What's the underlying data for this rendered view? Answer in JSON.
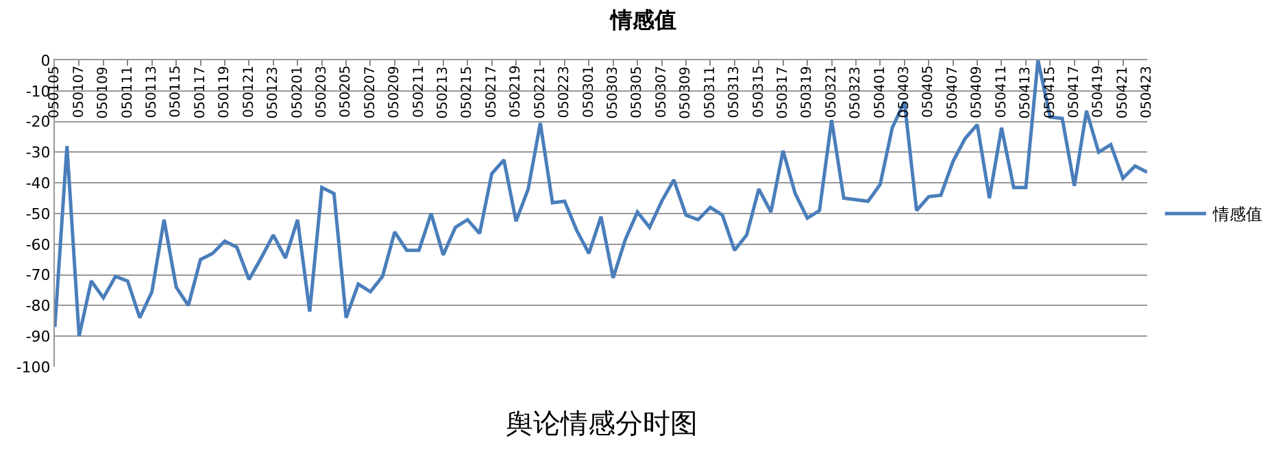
{
  "chart_data": {
    "type": "line",
    "title": "情感值",
    "categories": [
      "050105",
      null,
      "050107",
      null,
      "050109",
      null,
      "050111",
      null,
      "050113",
      null,
      "050115",
      null,
      "050117",
      null,
      "050119",
      null,
      "050121",
      null,
      "050123",
      null,
      "050201",
      null,
      "050203",
      null,
      "050205",
      null,
      "050207",
      null,
      "050209",
      null,
      "050211",
      null,
      "050213",
      null,
      "050215",
      null,
      "050217",
      null,
      "050219",
      null,
      "050221",
      null,
      "050223",
      null,
      "050301",
      null,
      "050303",
      null,
      "050305",
      null,
      "050307",
      null,
      "050309",
      null,
      "050311",
      null,
      "050313",
      null,
      "050315",
      null,
      "050317",
      null,
      "050319",
      null,
      "050321",
      null,
      "050323",
      null,
      "050401",
      null,
      "050403",
      null,
      "050405",
      null,
      "050407",
      null,
      "050409",
      null,
      "050411",
      null,
      "050413",
      null,
      "050415",
      null,
      "050417",
      null,
      "050419",
      null,
      "050421",
      null,
      "050423"
    ],
    "series": [
      {
        "name": "情感值",
        "color": "#4a7ebb",
        "values": [
          -87,
          -28,
          -90,
          -72,
          -77.5,
          -70.5,
          -72,
          -84,
          -75.5,
          -52,
          -74,
          -80,
          -65,
          -63,
          -59,
          -61,
          -71.5,
          -64.5,
          -57,
          -64.5,
          -52,
          -82,
          -41.5,
          -43.5,
          -84,
          -73,
          -75.5,
          -70.5,
          -56,
          -62,
          -62,
          -50,
          -63.5,
          -54.5,
          -52,
          -56.5,
          -37,
          -32.5,
          -52.5,
          -42,
          -20.5,
          -46.5,
          -46,
          -55.5,
          -63,
          -51,
          -71,
          -58.5,
          -49.5,
          -54.5,
          -46,
          -39,
          -50.5,
          -52,
          -48,
          -50.5,
          -62,
          -57,
          -42,
          -49.5,
          -29.5,
          -43.5,
          -51.5,
          -49,
          -19.5,
          -45,
          -45.5,
          -46,
          -40.5,
          -22,
          -13.5,
          -49,
          -44.5,
          -44,
          -33,
          -25.5,
          -21,
          -45,
          -22,
          -41.5,
          -41.5,
          0,
          -18.5,
          -19,
          -41,
          -16.5,
          -30,
          -27.5,
          -38.5,
          -34.5,
          -36.5
        ]
      }
    ],
    "ylim": [
      -100,
      0
    ],
    "yticks": [
      0,
      -10,
      -20,
      -30,
      -40,
      -50,
      -60,
      -70,
      -80,
      -90,
      -100
    ],
    "grid": "y",
    "legend": "right",
    "marker": "none",
    "line_style": "solid",
    "annotations": [
      "舆论情感分时图"
    ]
  }
}
